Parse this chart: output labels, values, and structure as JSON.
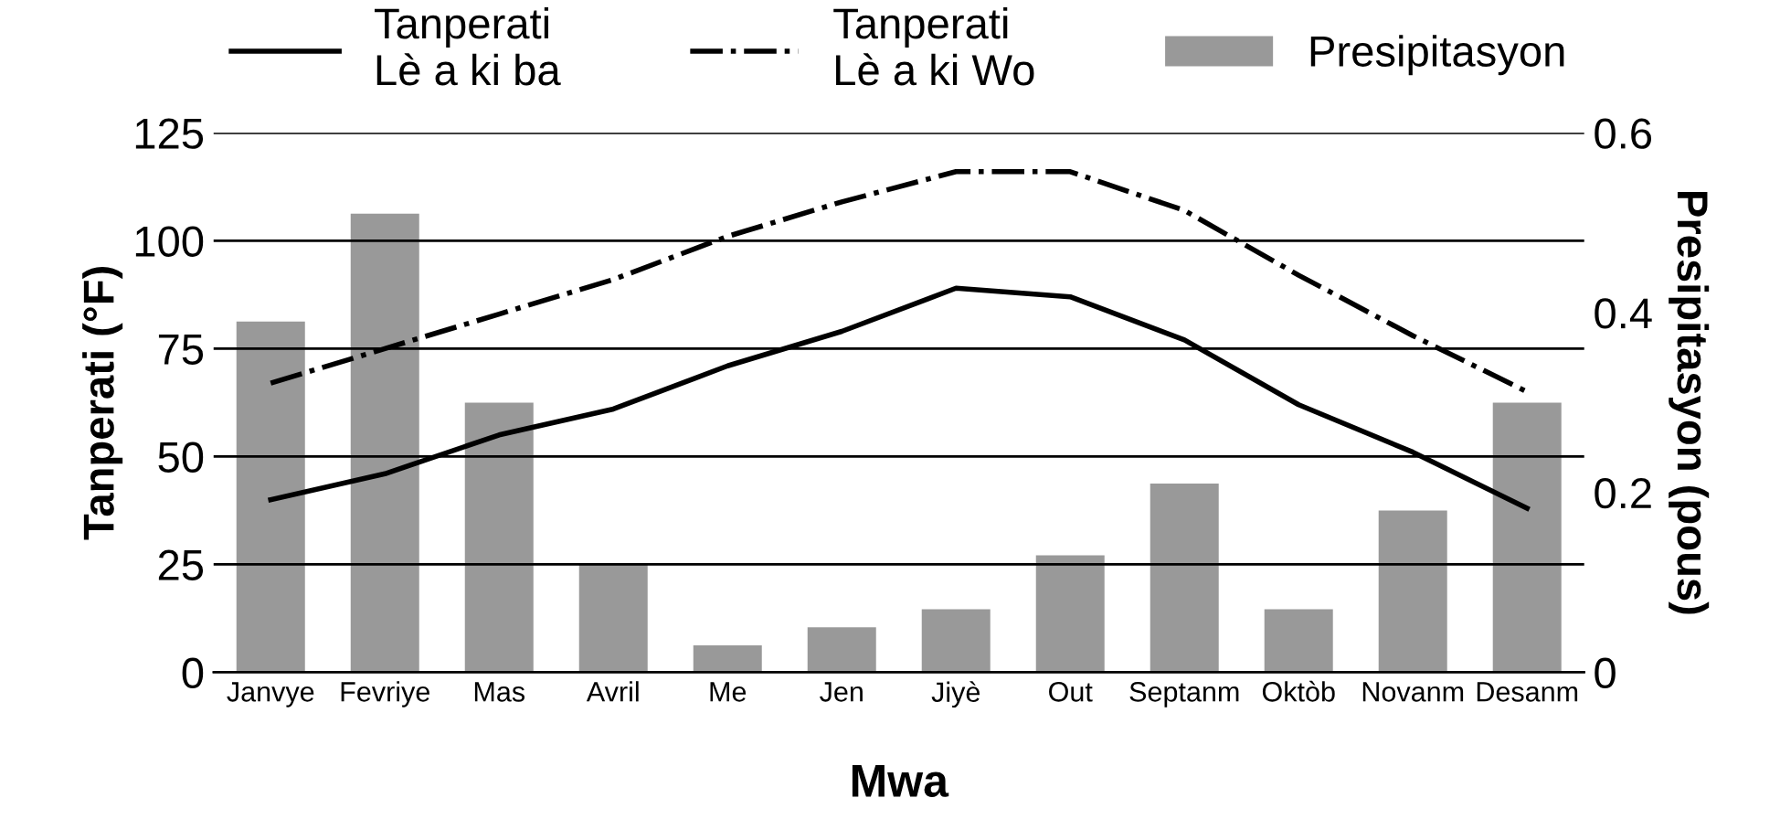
{
  "chart_data": {
    "type": "bar",
    "xlabel": "Mwa",
    "ylabel": "Tanperati (°F)",
    "y2label": "Presipitasyon (pous)",
    "categories": [
      "Janvye",
      "Fevriye",
      "Mas",
      "Avril",
      "Me",
      "Jen",
      "Jiyè",
      "Out",
      "Septanm",
      "Oktòb",
      "Novanm",
      "Desanm"
    ],
    "series": [
      {
        "name": "Tanperati\nLè a ki ba",
        "type": "line",
        "line_style": "solid",
        "color": "#000000",
        "values": [
          40,
          46,
          55,
          61,
          71,
          79,
          89,
          87,
          77,
          62,
          51,
          38
        ]
      },
      {
        "name": "Tanperati\nLè a ki Wo",
        "type": "line",
        "line_style": "dashdot",
        "color": "#000000",
        "values": [
          67,
          75,
          83,
          91,
          101,
          109,
          116,
          116,
          107,
          92,
          78,
          65
        ]
      },
      {
        "name": "Presipitasyon",
        "axis": "y2",
        "color": "#999999",
        "values": [
          0.39,
          0.51,
          0.3,
          0.12,
          0.03,
          0.05,
          0.07,
          0.13,
          0.21,
          0.07,
          0.18,
          0.3
        ]
      }
    ],
    "ylim": [
      0,
      125
    ],
    "yticks": [
      0,
      25,
      50,
      75,
      100,
      125
    ],
    "y2lim": [
      0,
      0.6
    ],
    "y2ticks": [
      0,
      0.2,
      0.4,
      0.6
    ],
    "grid": "y",
    "legend": "top"
  }
}
